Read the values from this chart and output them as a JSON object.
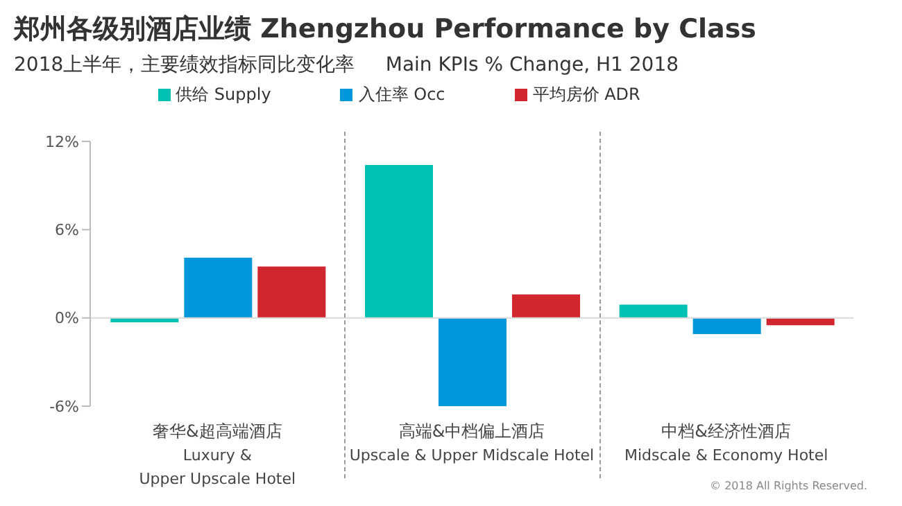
{
  "chart_data": {
    "type": "bar",
    "title": "郑州各级别酒店业绩 Zhengzhou Performance by Class",
    "subtitle": "2018上半年，主要绩效指标同比变化率     Main KPIs % Change, H1 2018",
    "categories": [
      "奢华&超高端酒店\nLuxury &\nUpper Upscale Hotel",
      "高端&中档偏上酒店\nUpscale & Upper Midscale Hotel",
      "中档&经济性酒店\nMidscale & Economy Hotel"
    ],
    "series": [
      {
        "name": "供给 Supply",
        "color": "#00bfb3",
        "values": [
          -0.3,
          10.4,
          0.9
        ]
      },
      {
        "name": "入住率 Occ",
        "color": "#0098db",
        "values": [
          4.1,
          -6.0,
          -1.1
        ]
      },
      {
        "name": "平均房价 ADR",
        "color": "#d0272f",
        "values": [
          3.5,
          1.6,
          -0.5
        ]
      }
    ],
    "ylim": [
      -6,
      12
    ],
    "yticks": [
      {
        "value": -6,
        "label": "-6%"
      },
      {
        "value": 0,
        "label": "0%"
      },
      {
        "value": 6,
        "label": "6%"
      },
      {
        "value": 12,
        "label": "12%"
      }
    ],
    "ref_lines": [
      {
        "axis": "y",
        "value": 0,
        "color": "#d9d9d9"
      }
    ],
    "grid": false,
    "legend": "top",
    "annotations": [
      "© 2018 All Rights Reserved."
    ]
  }
}
